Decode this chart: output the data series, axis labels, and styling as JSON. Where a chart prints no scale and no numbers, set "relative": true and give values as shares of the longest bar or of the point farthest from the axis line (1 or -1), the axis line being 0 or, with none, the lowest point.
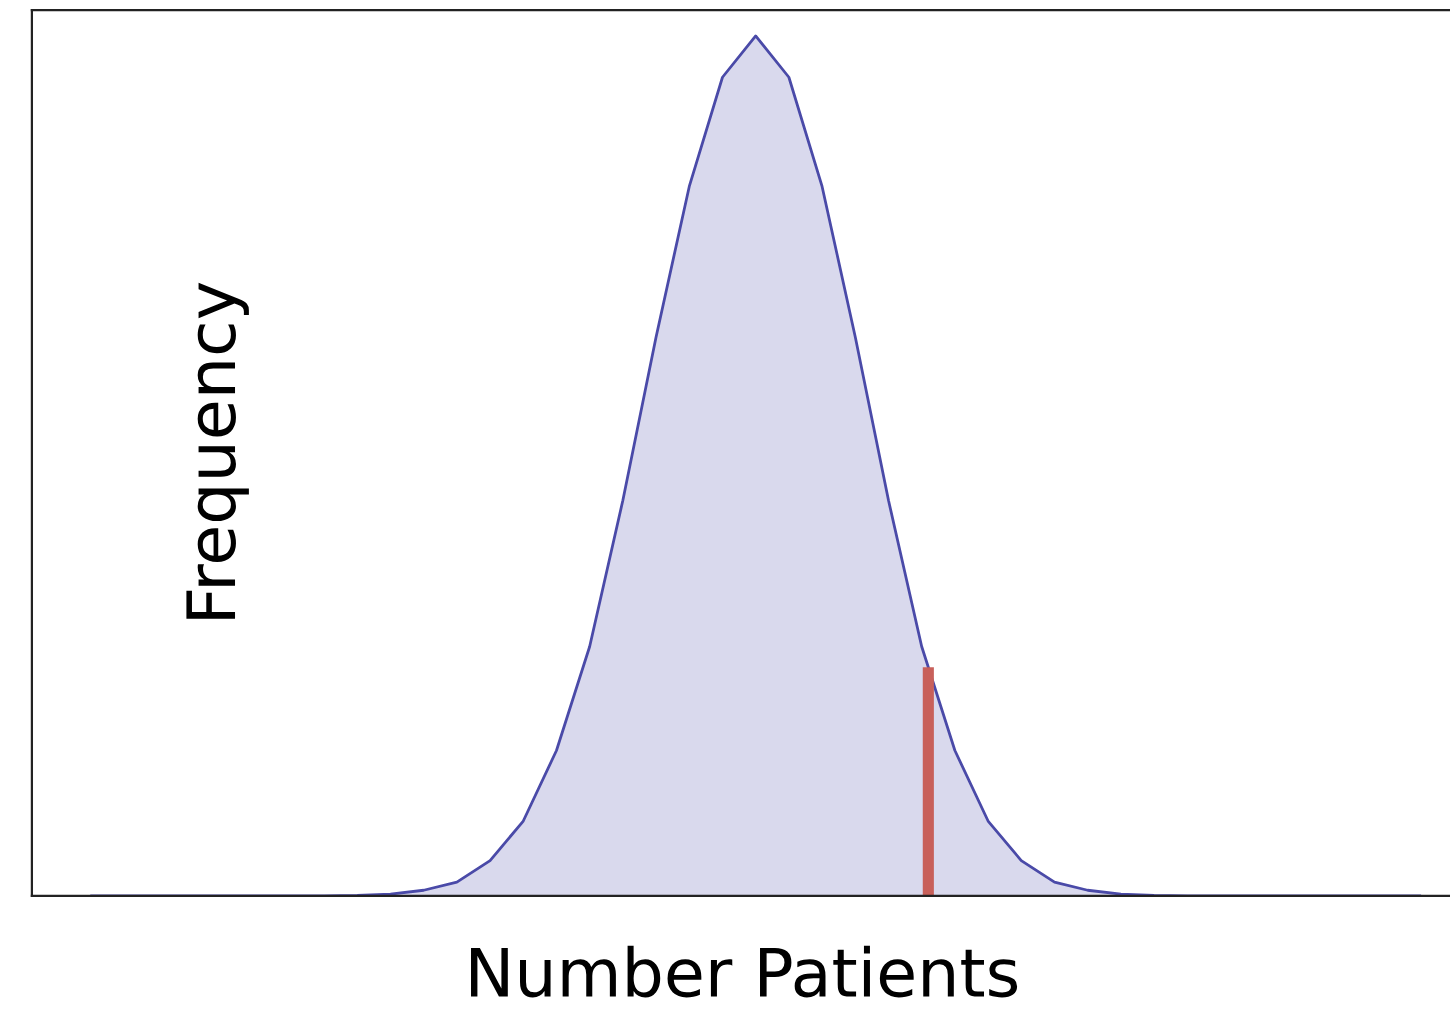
{
  "chart_data": {
    "type": "area",
    "relative": true,
    "xlabel": "Number Patients",
    "ylabel": "Frequency",
    "categories": [
      null,
      null,
      null,
      null,
      null,
      null,
      null,
      null,
      null,
      null,
      null,
      null,
      null,
      null,
      null,
      null,
      null,
      null,
      null,
      null,
      null,
      null,
      null,
      null,
      null,
      null,
      null,
      null,
      null,
      null,
      null,
      null,
      null,
      null,
      null,
      null,
      null,
      null,
      null,
      null,
      null
    ],
    "series": [
      {
        "color": "#4a4aa8",
        "values": [
          0,
          0,
          0,
          0,
          0,
          0,
          0,
          0,
          0.0005,
          0.002,
          0.0065,
          0.016,
          0.041,
          0.087,
          0.169,
          0.29,
          0.46,
          0.65,
          0.825,
          0.952,
          1,
          0.952,
          0.825,
          0.65,
          0.46,
          0.29,
          0.169,
          0.087,
          0.041,
          0.016,
          0.0065,
          0.002,
          0.0005,
          0,
          0,
          0,
          0,
          0,
          0,
          0,
          0
        ]
      }
    ],
    "grid": false,
    "legend": false,
    "tick_labels": false
  }
}
